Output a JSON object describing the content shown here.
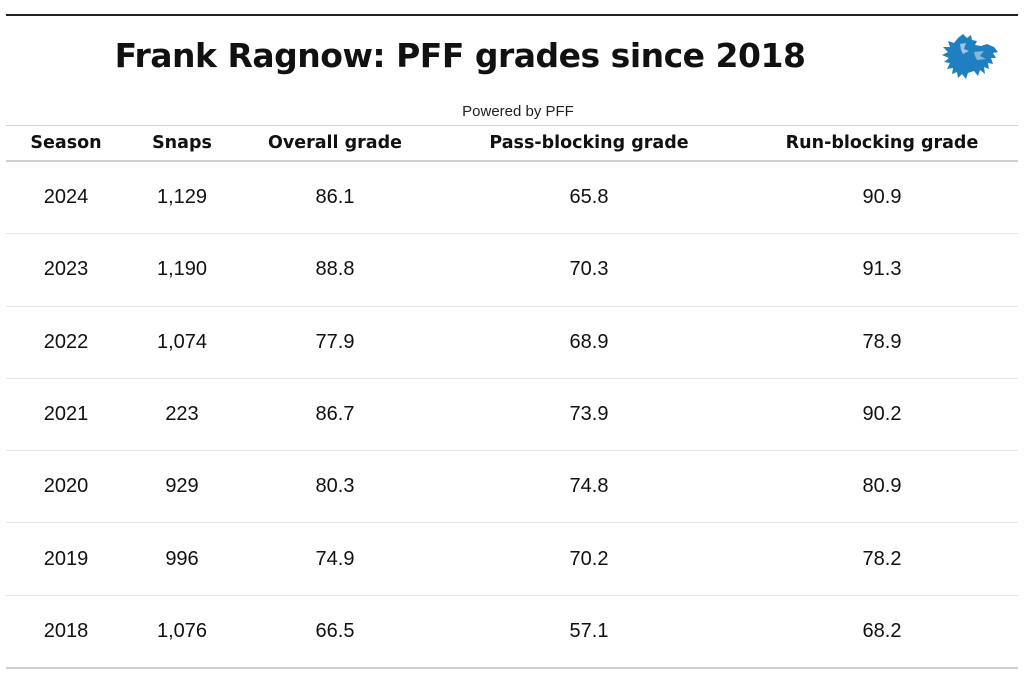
{
  "title": "Frank Ragnow: PFF grades since 2018",
  "subtitle": "Powered by PFF",
  "logo_icon": "detroit-lion-logo",
  "colors": {
    "logo_blue": "#1f7fc1",
    "rule": "#222222"
  },
  "chart_data": {
    "type": "table",
    "title": "Frank Ragnow: PFF grades since 2018",
    "subtitle": "Powered by PFF",
    "columns": [
      "Season",
      "Snaps",
      "Overall grade",
      "Pass-blocking grade",
      "Run-blocking grade"
    ],
    "rows": [
      [
        "2024",
        "1,129",
        "86.1",
        "65.8",
        "90.9"
      ],
      [
        "2023",
        "1,190",
        "88.8",
        "70.3",
        "91.3"
      ],
      [
        "2022",
        "1,074",
        "77.9",
        "68.9",
        "78.9"
      ],
      [
        "2021",
        "223",
        "86.7",
        "73.9",
        "90.2"
      ],
      [
        "2020",
        "929",
        "80.3",
        "74.8",
        "80.9"
      ],
      [
        "2019",
        "996",
        "74.9",
        "70.2",
        "78.2"
      ],
      [
        "2018",
        "1,076",
        "66.5",
        "57.1",
        "68.2"
      ]
    ]
  }
}
